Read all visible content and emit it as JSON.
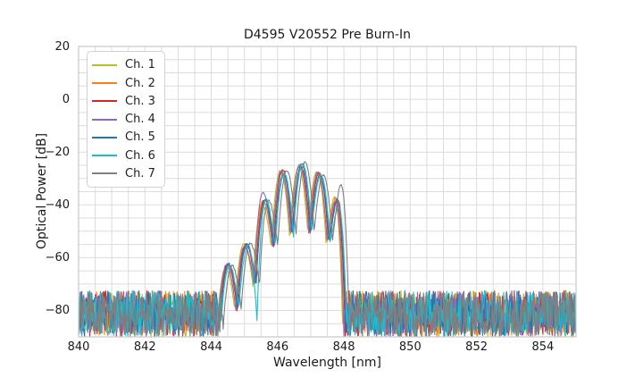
{
  "chart_data": {
    "type": "line",
    "title": "D4595 V20552 Pre Burn-In",
    "xlabel": "Wavelength [nm]",
    "ylabel": "Optical Power [dB]",
    "xlim": [
      840,
      855
    ],
    "ylim": [
      -90,
      20
    ],
    "x_ticks": [
      840,
      842,
      844,
      846,
      848,
      850,
      852,
      854
    ],
    "y_ticks": [
      20,
      0,
      -20,
      -40,
      -60,
      -80
    ],
    "x_minor_step_nm": 0.5,
    "y_minor_step_db": 5,
    "grid": true,
    "grid_color": "#dcdcdc",
    "border_color": "#c9c9c9",
    "background_color": "#ffffff",
    "legend_position": "upper-left",
    "spectrum": {
      "sample_step_nm": 0.02,
      "noise_floor": {
        "max_db": -72,
        "min_db": -90
      },
      "envelope_start_nm": 844.25,
      "envelope_end_nm": 848.06,
      "lobe_centers_nm": [
        844.53,
        845.08,
        845.63,
        846.18,
        846.73,
        847.28,
        847.83
      ],
      "lobe_peaks_db": [
        -63,
        -55.5,
        -38.5,
        -27.3,
        -24.8,
        -27.8,
        -38
      ],
      "null_positions_nm": [
        844.25,
        844.8,
        845.35,
        845.9,
        846.45,
        847.0,
        847.55,
        848.06
      ],
      "null_depths_db": [
        -88,
        -80,
        -71,
        -56,
        -52,
        -51,
        -54,
        -90
      ]
    },
    "series": [
      {
        "name": "Ch. 1",
        "color": "#bcbd22",
        "offset_nm": -0.09,
        "lobe_adjust_db": {},
        "null_adjust_db": {}
      },
      {
        "name": "Ch. 2",
        "color": "#ff7f0e",
        "offset_nm": -0.055,
        "lobe_adjust_db": {
          "3": 0.6
        },
        "null_adjust_db": {}
      },
      {
        "name": "Ch. 3",
        "color": "#d62728",
        "offset_nm": -0.02,
        "lobe_adjust_db": {},
        "null_adjust_db": {}
      },
      {
        "name": "Ch. 4",
        "color": "#9467bd",
        "offset_nm": -0.06,
        "lobe_adjust_db": {
          "2": 2.8
        },
        "null_adjust_db": {}
      },
      {
        "name": "Ch. 5",
        "color": "#1f77b4",
        "offset_nm": 0.005,
        "lobe_adjust_db": {
          "4": 0.8
        },
        "null_adjust_db": {}
      },
      {
        "name": "Ch. 6",
        "color": "#17becf",
        "offset_nm": 0.03,
        "lobe_adjust_db": {
          "6": -3.5
        },
        "null_adjust_db": {
          "2": -13
        }
      },
      {
        "name": "Ch. 7",
        "color": "#7f7f7f",
        "offset_nm": 0.105,
        "lobe_adjust_db": {
          "6": 6.5
        },
        "null_adjust_db": {}
      }
    ]
  }
}
